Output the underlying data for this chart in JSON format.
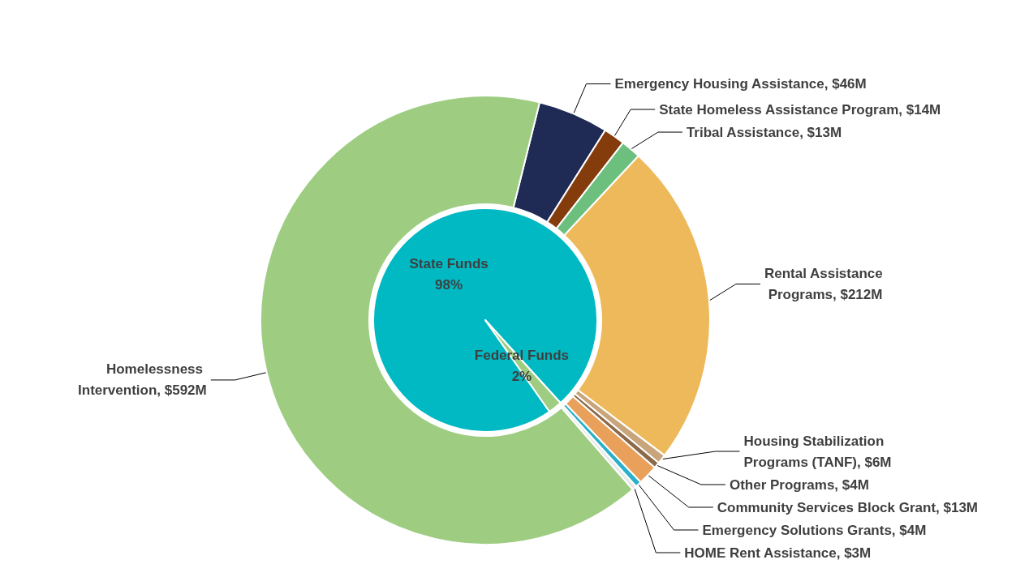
{
  "chart_data": [
    {
      "type": "pie",
      "categories": [
        "State Funds",
        "Federal Funds"
      ],
      "values": [
        98,
        2
      ],
      "colors": [
        "#00b9c3",
        "#9ecd82"
      ],
      "value_labels": [
        "98%",
        "2%"
      ]
    },
    {
      "type": "donut",
      "categories": [
        "Emergency Housing Assistance",
        "State Homeless Assistance Program",
        "Tribal Assistance",
        "Rental Assistance Programs",
        "Housing Stabilization Programs (TANF)",
        "Other Programs",
        "Community Services Block Grant",
        "Emergency Solutions Grants",
        "HOME Rent Assistance",
        "Homelessness Intervention"
      ],
      "values": [
        46,
        14,
        13,
        212,
        6,
        4,
        13,
        4,
        3,
        592
      ],
      "colors": [
        "#1f2a55",
        "#843c0c",
        "#6dbf7e",
        "#eeb95a",
        "#c8a57a",
        "#8a6a4a",
        "#e9a05a",
        "#2ab0c8",
        "#e8e8e8",
        "#9ecd82"
      ],
      "value_labels": [
        "$46M",
        "$14M",
        "$13M",
        "$212M",
        "$6M",
        "$4M",
        "$13M",
        "$4M",
        "$3M",
        "$592M"
      ]
    }
  ]
}
